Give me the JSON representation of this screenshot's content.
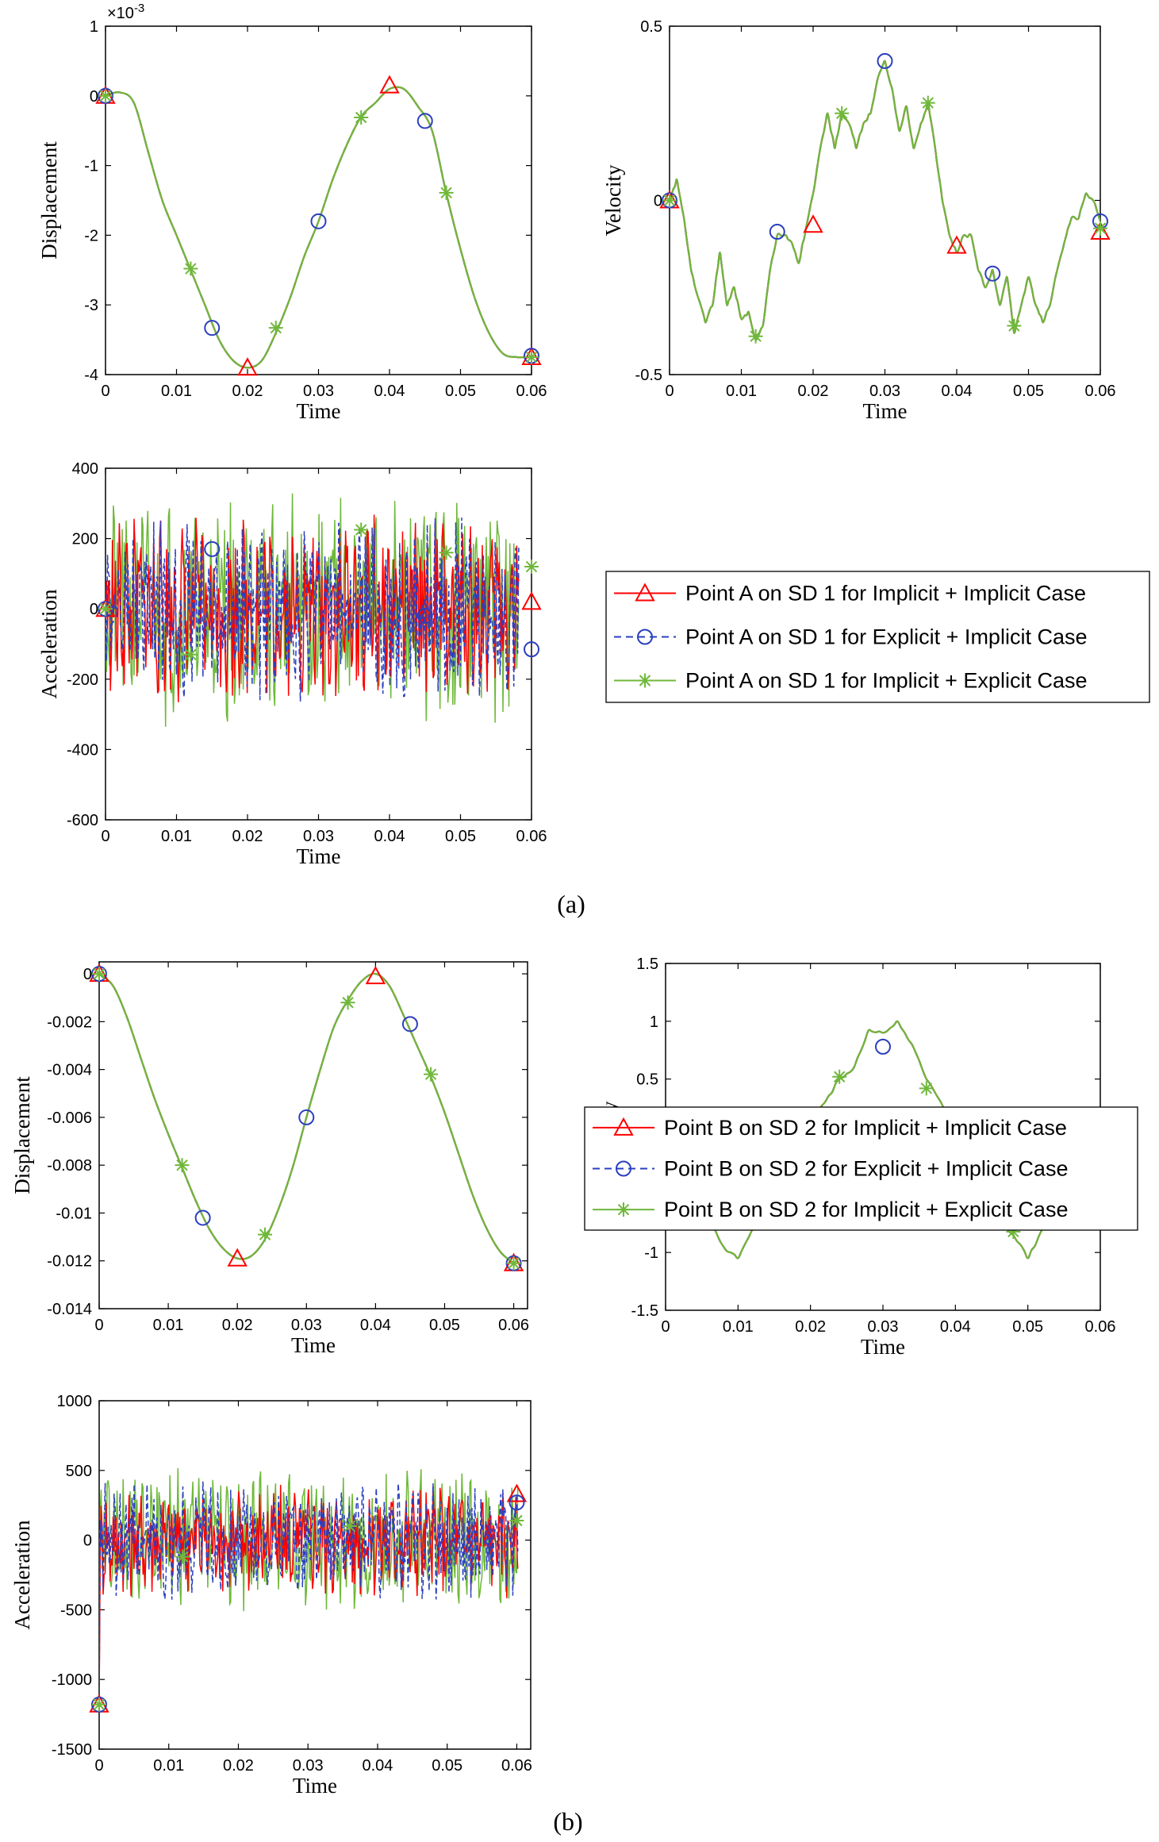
{
  "colors": {
    "implicit_implicit": "#ff0000",
    "explicit_implicit": "#2b3fbf",
    "implicit_explicit": "#6fb83a"
  },
  "captions": [
    "(a)",
    "(b)"
  ],
  "chart_data": [
    {
      "type": "line",
      "group": "a",
      "xlabel": "Time",
      "ylabel": "Displacement",
      "exponent": "×10",
      "exponent_power": "-3",
      "xlim": [
        0,
        0.06
      ],
      "ylim": [
        -4,
        1
      ],
      "xticks": [
        0,
        0.01,
        0.02,
        0.03,
        0.04,
        0.05,
        0.06
      ],
      "xtick_labels": [
        "0",
        "0.01",
        "0.02",
        "0.03",
        "0.04",
        "0.05",
        "0.06"
      ],
      "yticks": [
        -4,
        -3,
        -2,
        -1,
        0,
        1
      ],
      "ytick_labels": [
        "-4",
        "-3",
        "-2",
        "-1",
        "0",
        "1"
      ],
      "x": [
        0,
        0.002,
        0.004,
        0.006,
        0.008,
        0.01,
        0.012,
        0.014,
        0.016,
        0.018,
        0.02,
        0.022,
        0.024,
        0.026,
        0.028,
        0.03,
        0.032,
        0.034,
        0.036,
        0.038,
        0.04,
        0.042,
        0.044,
        0.046,
        0.048,
        0.05,
        0.052,
        0.054,
        0.056,
        0.058,
        0.06
      ],
      "series": [
        {
          "name": "Point A on SD 1 for Implicit + Implicit Case",
          "marker": "triangle",
          "y": [
            0,
            0.05,
            -0.1,
            -0.8,
            -1.5,
            -2.0,
            -2.5,
            -3.0,
            -3.5,
            -3.8,
            -3.9,
            -3.8,
            -3.4,
            -2.9,
            -2.3,
            -1.8,
            -1.2,
            -0.7,
            -0.3,
            -0.1,
            0.1,
            0.1,
            -0.15,
            -0.5,
            -1.4,
            -2.2,
            -2.9,
            -3.4,
            -3.7,
            -3.75,
            -3.75
          ]
        }
      ],
      "markers": {
        "implicit_implicit": [
          [
            0,
            0
          ],
          [
            0.02,
            -3.9
          ],
          [
            0.04,
            0.15
          ],
          [
            0.06,
            -3.75
          ]
        ],
        "explicit_implicit": [
          [
            0,
            0
          ],
          [
            0.015,
            -3.33
          ],
          [
            0.03,
            -1.8
          ],
          [
            0.045,
            -0.36
          ],
          [
            0.06,
            -3.73
          ]
        ],
        "implicit_explicit": [
          [
            0,
            0
          ],
          [
            0.012,
            -2.48
          ],
          [
            0.024,
            -3.33
          ],
          [
            0.036,
            -0.31
          ],
          [
            0.048,
            -1.39
          ],
          [
            0.06,
            -3.75
          ]
        ]
      }
    },
    {
      "type": "line",
      "group": "a",
      "xlabel": "Time",
      "ylabel": "Velocity",
      "xlim": [
        0,
        0.06
      ],
      "ylim": [
        -0.5,
        0.5
      ],
      "xticks": [
        0,
        0.01,
        0.02,
        0.03,
        0.04,
        0.05,
        0.06
      ],
      "xtick_labels": [
        "0",
        "0.01",
        "0.02",
        "0.03",
        "0.04",
        "0.05",
        "0.06"
      ],
      "yticks": [
        -0.5,
        0,
        0.5
      ],
      "ytick_labels": [
        "-0.5",
        "0",
        "0.5"
      ],
      "x": [
        0,
        0.001,
        0.002,
        0.003,
        0.004,
        0.005,
        0.006,
        0.007,
        0.008,
        0.009,
        0.01,
        0.011,
        0.012,
        0.013,
        0.014,
        0.015,
        0.016,
        0.017,
        0.018,
        0.019,
        0.02,
        0.021,
        0.022,
        0.023,
        0.024,
        0.025,
        0.026,
        0.027,
        0.028,
        0.029,
        0.03,
        0.031,
        0.032,
        0.033,
        0.034,
        0.035,
        0.036,
        0.037,
        0.038,
        0.039,
        0.04,
        0.041,
        0.042,
        0.043,
        0.044,
        0.045,
        0.046,
        0.047,
        0.048,
        0.049,
        0.05,
        0.051,
        0.052,
        0.053,
        0.054,
        0.055,
        0.056,
        0.057,
        0.058,
        0.059,
        0.06
      ],
      "series": [
        {
          "name": "Point A on SD 1 for Implicit + Implicit Case",
          "y": [
            0,
            0.06,
            -0.05,
            -0.2,
            -0.28,
            -0.35,
            -0.3,
            -0.15,
            -0.3,
            -0.25,
            -0.34,
            -0.32,
            -0.4,
            -0.36,
            -0.2,
            -0.1,
            -0.1,
            -0.12,
            -0.18,
            -0.08,
            0.02,
            0.15,
            0.25,
            0.15,
            0.25,
            0.22,
            0.15,
            0.22,
            0.25,
            0.35,
            0.4,
            0.32,
            0.2,
            0.27,
            0.15,
            0.22,
            0.28,
            0.15,
            0.0,
            -0.1,
            -0.15,
            -0.1,
            -0.1,
            -0.2,
            -0.25,
            -0.2,
            -0.3,
            -0.22,
            -0.38,
            -0.3,
            -0.22,
            -0.3,
            -0.35,
            -0.3,
            -0.2,
            -0.12,
            -0.05,
            -0.05,
            0.02,
            0.0,
            -0.06
          ]
        }
      ],
      "markers": {
        "implicit_implicit": [
          [
            0,
            0
          ],
          [
            0.02,
            -0.07
          ],
          [
            0.04,
            -0.13
          ],
          [
            0.06,
            -0.09
          ]
        ],
        "explicit_implicit": [
          [
            0,
            0
          ],
          [
            0.015,
            -0.09
          ],
          [
            0.03,
            0.4
          ],
          [
            0.045,
            -0.21
          ],
          [
            0.06,
            -0.06
          ]
        ],
        "implicit_explicit": [
          [
            0,
            0
          ],
          [
            0.012,
            -0.39
          ],
          [
            0.024,
            0.25
          ],
          [
            0.036,
            0.28
          ],
          [
            0.048,
            -0.36
          ],
          [
            0.06,
            -0.08
          ]
        ]
      }
    },
    {
      "type": "line",
      "group": "a",
      "xlabel": "Time",
      "ylabel": "Acceleration",
      "xlim": [
        0,
        0.06
      ],
      "ylim": [
        -600,
        400
      ],
      "xticks": [
        0,
        0.01,
        0.02,
        0.03,
        0.04,
        0.05,
        0.06
      ],
      "xtick_labels": [
        "0",
        "0.01",
        "0.02",
        "0.03",
        "0.04",
        "0.05",
        "0.06"
      ],
      "yticks": [
        -600,
        -400,
        -200,
        0,
        200,
        400
      ],
      "ytick_labels": [
        "-600",
        "-400",
        "-200",
        "0",
        "200",
        "400"
      ],
      "noise_amplitude": 210,
      "peak_max": 350,
      "peak_min": -410,
      "markers": {
        "implicit_implicit": [
          [
            0,
            0
          ],
          [
            0.06,
            20
          ]
        ],
        "explicit_implicit": [
          [
            0,
            0
          ],
          [
            0.015,
            170
          ],
          [
            0.045,
            -20
          ],
          [
            0.06,
            -115
          ]
        ],
        "implicit_explicit": [
          [
            0,
            0
          ],
          [
            0.012,
            -130
          ],
          [
            0.036,
            225
          ],
          [
            0.048,
            160
          ],
          [
            0.06,
            120
          ]
        ]
      },
      "legend": [
        "Point A on SD 1 for Implicit + Implicit Case",
        "Point A on SD 1 for Explicit + Implicit Case",
        "Point A on SD 1 for Implicit + Explicit Case"
      ]
    },
    {
      "type": "line",
      "group": "b",
      "xlabel": "Time",
      "ylabel": "Displacement",
      "xlim": [
        0,
        0.062
      ],
      "ylim": [
        -0.014,
        0.0005
      ],
      "xticks": [
        0,
        0.01,
        0.02,
        0.03,
        0.04,
        0.05,
        0.06
      ],
      "xtick_labels": [
        "0",
        "0.01",
        "0.02",
        "0.03",
        "0.04",
        "0.05",
        "0.06"
      ],
      "yticks": [
        -0.014,
        -0.012,
        -0.01,
        -0.008,
        -0.006,
        -0.004,
        -0.002,
        0
      ],
      "ytick_labels": [
        "-0.014",
        "-0.012",
        "-0.01",
        "-0.008",
        "-0.006",
        "-0.004",
        "-0.002",
        "0"
      ],
      "x": [
        0,
        0.002,
        0.004,
        0.006,
        0.008,
        0.01,
        0.012,
        0.014,
        0.016,
        0.018,
        0.02,
        0.022,
        0.024,
        0.026,
        0.028,
        0.03,
        0.032,
        0.034,
        0.036,
        0.038,
        0.04,
        0.042,
        0.044,
        0.046,
        0.048,
        0.05,
        0.052,
        0.054,
        0.056,
        0.058,
        0.06
      ],
      "series": [
        {
          "name": "Point B on SD 2 for Implicit + Implicit Case",
          "y": [
            0,
            -0.0005,
            -0.0018,
            -0.0035,
            -0.0052,
            -0.0067,
            -0.0081,
            -0.0095,
            -0.0107,
            -0.0115,
            -0.0119,
            -0.0118,
            -0.0111,
            -0.0098,
            -0.0081,
            -0.006,
            -0.004,
            -0.0022,
            -0.0011,
            -0.0003,
            0,
            -0.0005,
            -0.0017,
            -0.003,
            -0.0043,
            -0.0058,
            -0.0075,
            -0.0092,
            -0.0106,
            -0.0116,
            -0.0121
          ]
        }
      ],
      "markers": {
        "implicit_implicit": [
          [
            0,
            0
          ],
          [
            0.02,
            -0.0119
          ],
          [
            0.04,
            -0.0001
          ],
          [
            0.06,
            -0.0121
          ]
        ],
        "explicit_implicit": [
          [
            0,
            0
          ],
          [
            0.015,
            -0.0102
          ],
          [
            0.03,
            -0.006
          ],
          [
            0.045,
            -0.0021
          ],
          [
            0.06,
            -0.0121
          ]
        ],
        "implicit_explicit": [
          [
            0,
            0
          ],
          [
            0.012,
            -0.008
          ],
          [
            0.024,
            -0.0109
          ],
          [
            0.036,
            -0.0012
          ],
          [
            0.048,
            -0.0042
          ],
          [
            0.06,
            -0.0121
          ]
        ]
      }
    },
    {
      "type": "line",
      "group": "b",
      "xlabel": "Time",
      "ylabel": "Velocity",
      "xlim": [
        0,
        0.06
      ],
      "ylim": [
        -1.5,
        1.5
      ],
      "xticks": [
        0,
        0.01,
        0.02,
        0.03,
        0.04,
        0.05,
        0.06
      ],
      "xtick_labels": [
        "0",
        "0.01",
        "0.02",
        "0.03",
        "0.04",
        "0.05",
        "0.06"
      ],
      "yticks": [
        -1.5,
        -1,
        -0.5,
        0,
        0.5,
        1,
        1.5
      ],
      "ytick_labels": [
        "-1.5",
        "-1",
        "-0.5",
        "0",
        "0.5",
        "1",
        "1.5"
      ],
      "x": [
        0,
        0.002,
        0.004,
        0.006,
        0.008,
        0.01,
        0.012,
        0.014,
        0.016,
        0.018,
        0.02,
        0.022,
        0.024,
        0.026,
        0.028,
        0.03,
        0.032,
        0.034,
        0.036,
        0.038,
        0.04,
        0.042,
        0.044,
        0.046,
        0.048,
        0.05,
        0.052,
        0.054,
        0.056,
        0.058,
        0.06
      ],
      "series": [
        {
          "name": "Point B on SD 2 for Implicit + Implicit Case",
          "y": [
            0,
            -0.3,
            -0.5,
            -0.7,
            -0.95,
            -1.05,
            -0.8,
            -0.7,
            -0.6,
            -0.3,
            0.1,
            0.3,
            0.5,
            0.6,
            0.92,
            0.9,
            1.0,
            0.8,
            0.5,
            0.3,
            0.1,
            -0.2,
            -0.45,
            -0.7,
            -0.85,
            -1.05,
            -0.8,
            -0.7,
            -0.55,
            -0.3,
            0.08
          ]
        }
      ],
      "markers": {
        "implicit_implicit": [
          [
            0,
            0
          ],
          [
            0.02,
            0.1
          ],
          [
            0.04,
            0.13
          ],
          [
            0.06,
            0.1
          ]
        ],
        "explicit_implicit": [
          [
            0,
            0
          ],
          [
            0.015,
            -0.73
          ],
          [
            0.03,
            0.78
          ],
          [
            0.045,
            -0.67
          ],
          [
            0.06,
            0.07
          ]
        ],
        "implicit_explicit": [
          [
            0,
            0
          ],
          [
            0.012,
            -0.7
          ],
          [
            0.024,
            0.52
          ],
          [
            0.036,
            0.42
          ],
          [
            0.048,
            -0.82
          ],
          [
            0.06,
            0.06
          ]
        ]
      }
    },
    {
      "type": "line",
      "group": "b",
      "xlabel": "Time",
      "ylabel": "Acceleration",
      "xlim": [
        0,
        0.062
      ],
      "ylim": [
        -1500,
        1000
      ],
      "xticks": [
        0,
        0.01,
        0.02,
        0.03,
        0.04,
        0.05,
        0.06
      ],
      "xtick_labels": [
        "0",
        "0.01",
        "0.02",
        "0.03",
        "0.04",
        "0.05",
        "0.06"
      ],
      "yticks": [
        -1500,
        -1000,
        -500,
        0,
        500,
        1000
      ],
      "ytick_labels": [
        "-1500",
        "-1000",
        "-500",
        "0",
        "500",
        "1000"
      ],
      "noise_amplitude": 330,
      "peak_max": 950,
      "peak_min": -750,
      "initial_value": -1180,
      "markers": {
        "implicit_implicit": [
          [
            0,
            -1180
          ],
          [
            0.06,
            330
          ]
        ],
        "explicit_implicit": [
          [
            0,
            -1180
          ],
          [
            0.06,
            270
          ]
        ],
        "implicit_explicit": [
          [
            0,
            -1180
          ],
          [
            0.012,
            -120
          ],
          [
            0.036,
            100
          ],
          [
            0.06,
            140
          ]
        ]
      },
      "legend": [
        "Point B on SD 2 for Implicit + Implicit Case",
        "Point B on SD 2 for Explicit + Implicit Case",
        "Point B on SD 2 for Implicit + Explicit Case"
      ]
    }
  ]
}
